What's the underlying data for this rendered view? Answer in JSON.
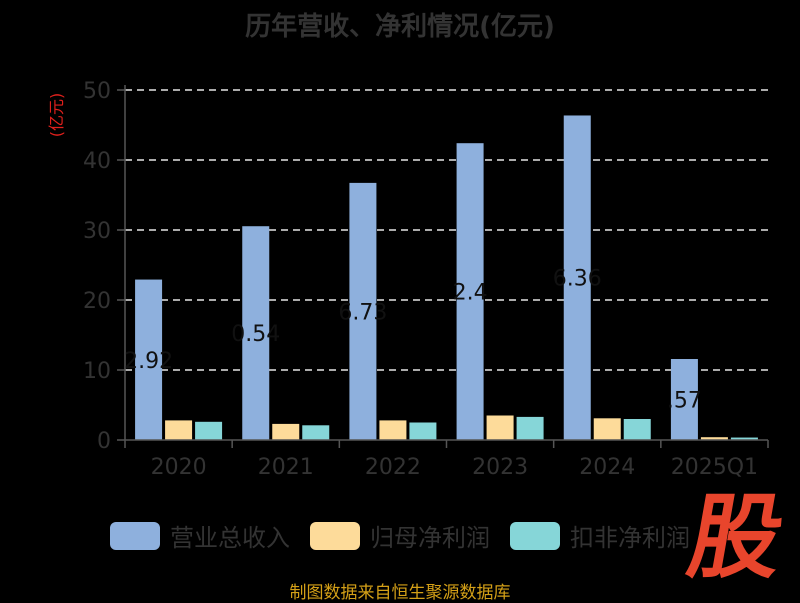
{
  "chart_data": {
    "type": "bar",
    "title": "历年营收、净利情况(亿元)",
    "ylabel": "(亿元)",
    "ylim": [
      0,
      50
    ],
    "yticks": [
      0,
      10,
      20,
      30,
      40,
      50
    ],
    "grid": true,
    "categories": [
      "2020",
      "2021",
      "2022",
      "2023",
      "2024",
      "2025Q1"
    ],
    "series": [
      {
        "name": "营业总收入",
        "color": "#8eb0dd",
        "values": [
          22.92,
          30.54,
          36.73,
          42.4,
          46.36,
          11.57
        ]
      },
      {
        "name": "归母净利润",
        "color": "#fddb9a",
        "values": [
          2.8,
          2.3,
          2.8,
          3.5,
          3.1,
          0.4
        ]
      },
      {
        "name": "扣非净利润",
        "color": "#86d6d8",
        "values": [
          2.6,
          2.1,
          2.5,
          3.3,
          3.0,
          0.35
        ]
      }
    ],
    "data_labels": [
      {
        "category": "2020",
        "text": "2.92"
      },
      {
        "category": "2021",
        "text": "0.54"
      },
      {
        "category": "2022",
        "text": "6.73"
      },
      {
        "category": "2023",
        "text": "2.4"
      },
      {
        "category": "2024",
        "text": "6.36"
      },
      {
        "category": "2025Q1",
        "text": ".57"
      }
    ]
  },
  "source": "制图数据来自恒生聚源数据库",
  "watermark": "股"
}
